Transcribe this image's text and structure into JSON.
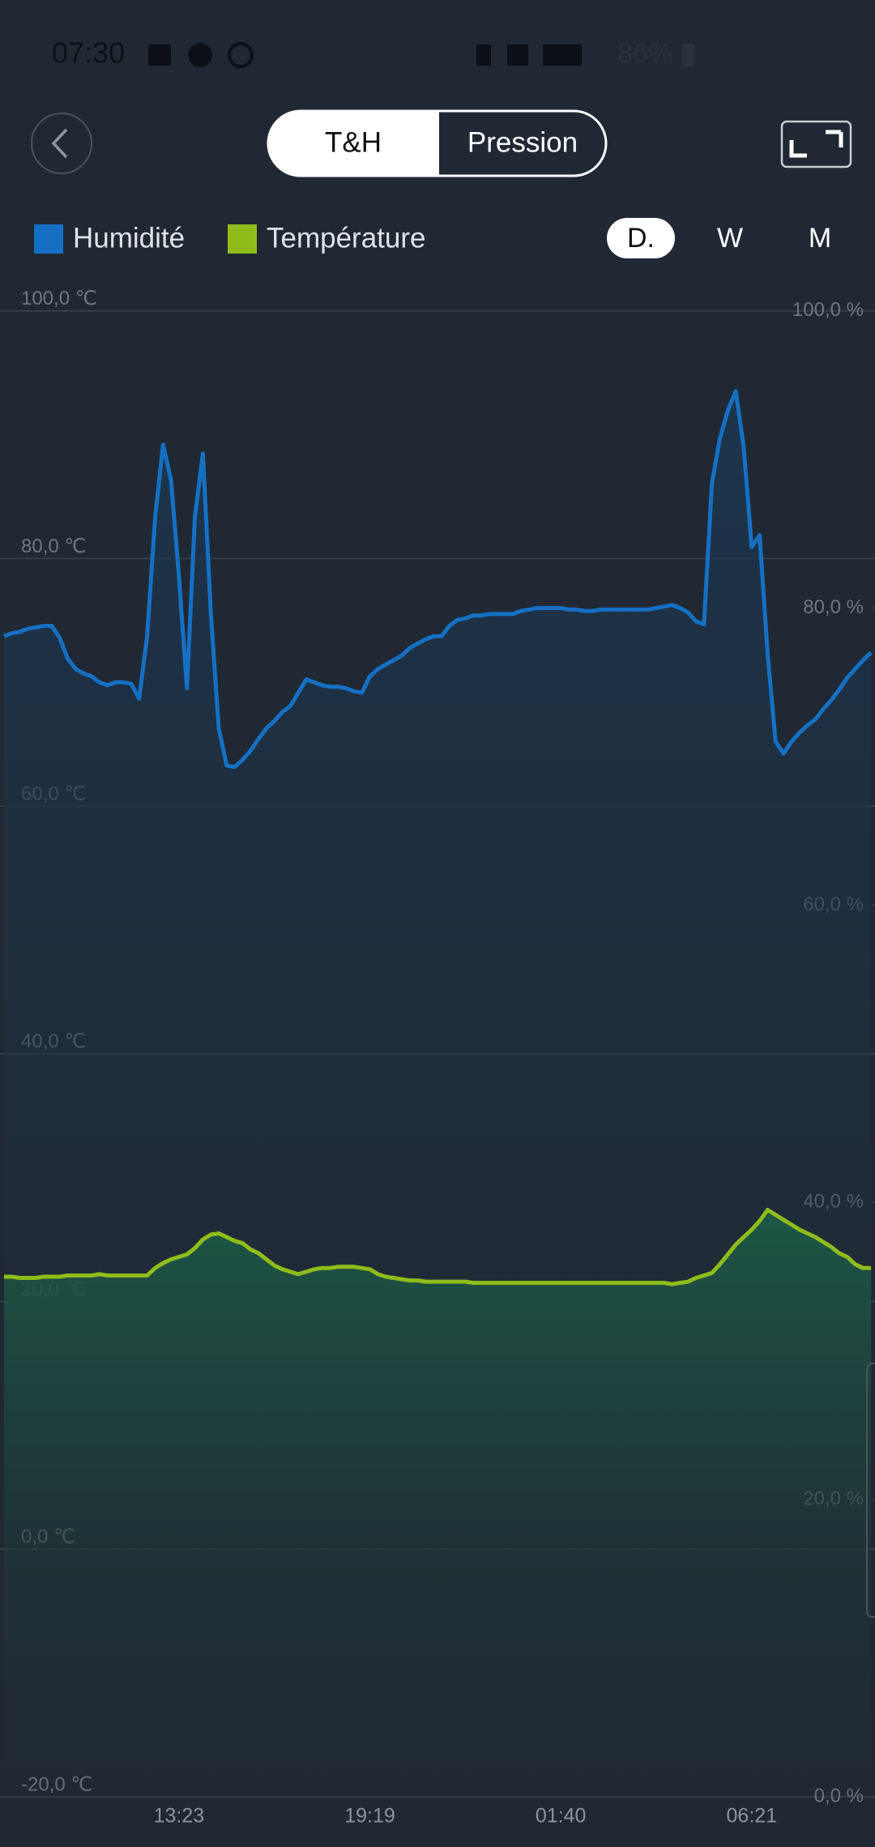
{
  "status_bar": {
    "time": "07:30",
    "battery": "86%"
  },
  "tabs": [
    "T&H",
    "Pression"
  ],
  "period_options": [
    "D.",
    "W",
    "M"
  ],
  "chart_data": {
    "type": "line",
    "categories": [
      null,
      null,
      null,
      null,
      null,
      null,
      null,
      null,
      null,
      null,
      null,
      null,
      null,
      null,
      null,
      null,
      null,
      null,
      null,
      null,
      null,
      null,
      "13:23",
      null,
      null,
      null,
      null,
      null,
      null,
      null,
      null,
      null,
      null,
      null,
      null,
      null,
      null,
      null,
      null,
      null,
      null,
      null,
      null,
      null,
      null,
      null,
      "19:19",
      null,
      null,
      null,
      null,
      null,
      null,
      null,
      null,
      null,
      null,
      null,
      null,
      null,
      null,
      null,
      null,
      null,
      null,
      null,
      null,
      null,
      null,
      null,
      "01:40",
      null,
      null,
      null,
      null,
      null,
      null,
      null,
      null,
      null,
      null,
      null,
      null,
      null,
      null,
      null,
      null,
      null,
      null,
      null,
      null,
      null,
      null,
      null,
      "06:21",
      null,
      null,
      null,
      null,
      null,
      null,
      null,
      null,
      null,
      null,
      null,
      null,
      null,
      null,
      null
    ],
    "series": [
      {
        "name": "Humidité",
        "color": "#1570c4",
        "axis": "y2",
        "values": [
          78.1,
          78.3,
          78.4,
          78.6,
          78.7,
          78.8,
          78.8,
          78.0,
          76.6,
          75.9,
          75.6,
          75.4,
          75.0,
          74.8,
          75.0,
          75.0,
          74.9,
          73.9,
          78.1,
          86.1,
          91.0,
          88.6,
          82.1,
          74.6,
          86.1,
          90.4,
          79.7,
          71.9,
          69.4,
          69.3,
          69.8,
          70.4,
          71.2,
          71.9,
          72.4,
          73.0,
          73.4,
          74.3,
          75.2,
          75.0,
          74.8,
          74.7,
          74.7,
          74.6,
          74.4,
          74.3,
          75.4,
          75.9,
          76.2,
          76.5,
          76.8,
          77.3,
          77.6,
          77.9,
          78.1,
          78.1,
          78.8,
          79.2,
          79.3,
          79.5,
          79.5,
          79.6,
          79.6,
          79.6,
          79.6,
          79.8,
          79.9,
          80.0,
          80.0,
          80.0,
          80.0,
          79.9,
          79.9,
          79.8,
          79.8,
          79.9,
          79.9,
          79.9,
          79.9,
          79.9,
          79.9,
          79.9,
          80.0,
          80.1,
          80.2,
          80.0,
          79.7,
          79.1,
          78.9,
          88.4,
          91.4,
          93.3,
          94.6,
          90.8,
          84.1,
          84.9,
          76.9,
          71.0,
          70.2,
          71.0,
          71.6,
          72.1,
          72.5,
          73.2,
          73.8,
          74.5,
          75.3,
          75.9,
          76.5,
          77.0
        ]
      },
      {
        "name": "Température",
        "color": "#8fbc1a",
        "axis": "y",
        "values": [
          22.0,
          22.0,
          21.9,
          21.9,
          21.9,
          22.0,
          22.0,
          22.0,
          22.1,
          22.1,
          22.1,
          22.1,
          22.2,
          22.1,
          22.1,
          22.1,
          22.1,
          22.1,
          22.1,
          22.7,
          23.1,
          23.4,
          23.6,
          23.8,
          24.3,
          25.0,
          25.4,
          25.5,
          25.2,
          24.9,
          24.7,
          24.2,
          23.9,
          23.4,
          22.9,
          22.6,
          22.4,
          22.2,
          22.4,
          22.6,
          22.7,
          22.7,
          22.8,
          22.8,
          22.8,
          22.7,
          22.6,
          22.2,
          22.0,
          21.9,
          21.8,
          21.7,
          21.7,
          21.6,
          21.6,
          21.6,
          21.6,
          21.6,
          21.6,
          21.5,
          21.5,
          21.5,
          21.5,
          21.5,
          21.5,
          21.5,
          21.5,
          21.5,
          21.5,
          21.5,
          21.5,
          21.5,
          21.5,
          21.5,
          21.5,
          21.5,
          21.5,
          21.5,
          21.5,
          21.5,
          21.5,
          21.5,
          21.5,
          21.5,
          21.4,
          21.5,
          21.6,
          21.9,
          22.1,
          22.3,
          23.0,
          23.8,
          24.6,
          25.2,
          25.8,
          26.5,
          27.4,
          27.0,
          26.6,
          26.2,
          25.8,
          25.5,
          25.2,
          24.8,
          24.4,
          23.9,
          23.6,
          23.0,
          22.7,
          22.7
        ]
      }
    ],
    "ylim": [
      -20,
      100
    ],
    "yticks": [
      {
        "value": -20,
        "label": "-20,0 ℃"
      },
      {
        "value": 0,
        "label": "0,0 ℃"
      },
      {
        "value": 20,
        "label": "20,0 ℃"
      },
      {
        "value": 40,
        "label": "40,0 ℃"
      },
      {
        "value": 60,
        "label": "60,0 ℃"
      },
      {
        "value": 80,
        "label": "80,0 ℃"
      },
      {
        "value": 100,
        "label": "100,0 ℃"
      }
    ],
    "y2lim": [
      0,
      100
    ],
    "y2ticks": [
      {
        "value": 0,
        "label": "0,0 %"
      },
      {
        "value": 20,
        "label": "20,0 %"
      },
      {
        "value": 40,
        "label": "40,0 %"
      },
      {
        "value": 60,
        "label": "60,0 %"
      },
      {
        "value": 80,
        "label": "80,0 %"
      },
      {
        "value": 100,
        "label": "100,0 %"
      }
    ],
    "grid": true
  }
}
